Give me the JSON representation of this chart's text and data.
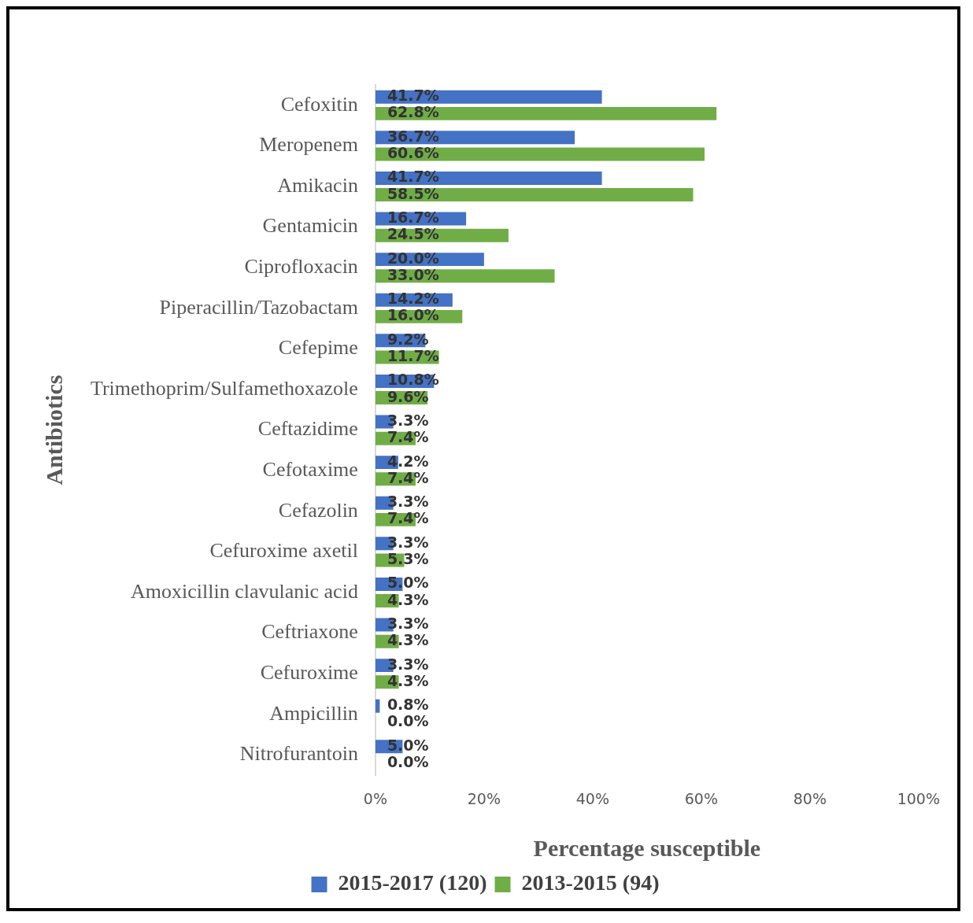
{
  "chart_data": {
    "type": "bar",
    "orientation": "horizontal",
    "xlabel": "Percentage susceptible",
    "ylabel": "Antibiotics",
    "categories": [
      "Cefoxitin",
      "Meropenem",
      "Amikacin",
      "Gentamicin",
      "Ciprofloxacin",
      "Piperacillin/Tazobactam",
      "Cefepime",
      "Trimethoprim/Sulfamethoxazole",
      "Ceftazidime",
      "Cefotaxime",
      "Cefazolin",
      "Cefuroxime axetil",
      "Amoxicillin clavulanic acid",
      "Ceftriaxone",
      "Cefuroxime",
      "Ampicillin",
      "Nitrofurantoin"
    ],
    "series": [
      {
        "name": "2015-2017 (120)",
        "color": "#4472c4",
        "values": [
          41.7,
          36.7,
          41.7,
          16.7,
          20.0,
          14.2,
          9.2,
          10.8,
          3.3,
          4.2,
          3.3,
          3.3,
          5.0,
          3.3,
          3.3,
          0.8,
          5.0
        ],
        "value_labels": [
          "41.7%",
          "36.7%",
          "41.7%",
          "16.7%",
          "20.0%",
          "14.2%",
          "9.2%",
          "10.8%",
          "3.3%",
          "4.2%",
          "3.3%",
          "3.3%",
          "5.0%",
          "3.3%",
          "3.3%",
          "0.8%",
          "5.0%"
        ]
      },
      {
        "name": "2013-2015 (94)",
        "color": "#70ad47",
        "values": [
          62.8,
          60.6,
          58.5,
          24.5,
          33.0,
          16.0,
          11.7,
          9.6,
          7.4,
          7.4,
          7.4,
          5.3,
          4.3,
          4.3,
          4.3,
          0.0,
          0.0
        ],
        "value_labels": [
          "62.8%",
          "60.6%",
          "58.5%",
          "24.5%",
          "33.0%",
          "16.0%",
          "11.7%",
          "9.6%",
          "7.4%",
          "7.4%",
          "7.4%",
          "5.3%",
          "4.3%",
          "4.3%",
          "4.3%",
          "0.0%",
          "0.0%"
        ]
      }
    ],
    "xlim": [
      0,
      100
    ],
    "xticks": [
      {
        "value": 0,
        "label": "0%"
      },
      {
        "value": 20,
        "label": "20%"
      },
      {
        "value": 40,
        "label": "40%"
      },
      {
        "value": 60,
        "label": "60%"
      },
      {
        "value": 80,
        "label": "80%"
      },
      {
        "value": 100,
        "label": "100%"
      }
    ],
    "grid": false,
    "legend": "bottom"
  }
}
